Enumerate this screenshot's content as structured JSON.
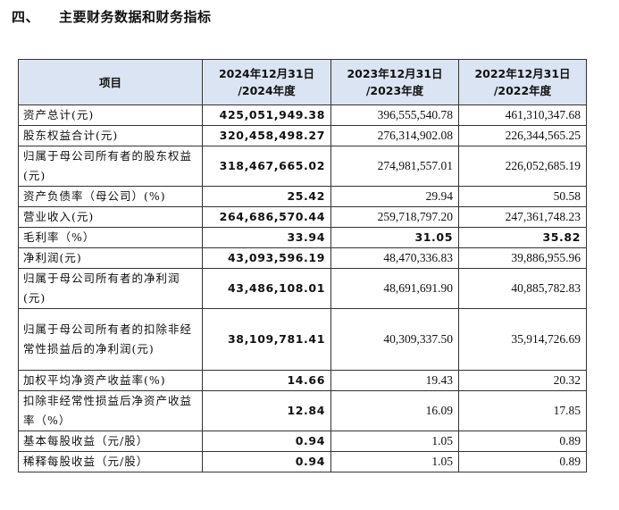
{
  "section": {
    "number": "四、",
    "title": "主要财务数据和财务指标"
  },
  "table": {
    "headers": [
      "项目",
      "2024年12月31日\n/2024年度",
      "2023年12月31日\n/2023年度",
      "2022年12月31日\n/2022年度"
    ],
    "rows": [
      {
        "label": "资产总计(元)",
        "v2024": "425,051,949.38",
        "v2023": "396,555,540.78",
        "v2022": "461,310,347.68",
        "bold2023": false,
        "bold2022": false
      },
      {
        "label": "股东权益合计(元)",
        "v2024": "320,458,498.27",
        "v2023": "276,314,902.08",
        "v2022": "226,344,565.25",
        "bold2023": false,
        "bold2022": false
      },
      {
        "label": "归属于母公司所有者的股东权益(元)",
        "v2024": "318,467,665.02",
        "v2023": "274,981,557.01",
        "v2022": "226,052,685.19",
        "bold2023": false,
        "bold2022": false
      },
      {
        "label": "资产负债率（母公司）(%)",
        "v2024": "25.42",
        "v2023": "29.94",
        "v2022": "50.58",
        "bold2023": false,
        "bold2022": false
      },
      {
        "label": "营业收入(元)",
        "v2024": "264,686,570.44",
        "v2023": "259,718,797.20",
        "v2022": "247,361,748.23",
        "bold2023": false,
        "bold2022": false
      },
      {
        "label": "毛利率（%）",
        "v2024": "33.94",
        "v2023": "31.05",
        "v2022": "35.82",
        "bold2023": true,
        "bold2022": true
      },
      {
        "label": "净利润(元)",
        "v2024": "43,093,596.19",
        "v2023": "48,470,336.83",
        "v2022": "39,886,955.96",
        "bold2023": false,
        "bold2022": false
      },
      {
        "label": "归属于母公司所有者的净利润(元)",
        "v2024": "43,486,108.01",
        "v2023": "48,691,691.90",
        "v2022": "40,885,782.83",
        "bold2023": false,
        "bold2022": false
      },
      {
        "label": "归属于母公司所有者的扣除非经常性损益后的净利润(元)",
        "v2024": "38,109,781.41",
        "v2023": "40,309,337.50",
        "v2022": "35,914,726.69",
        "bold2023": false,
        "bold2022": false
      },
      {
        "label": "加权平均净资产收益率(%)",
        "v2024": "14.66",
        "v2023": "19.43",
        "v2022": "20.32",
        "bold2023": false,
        "bold2022": false
      },
      {
        "label": "扣除非经常性损益后净资产收益率（%）",
        "v2024": "12.84",
        "v2023": "16.09",
        "v2022": "17.85",
        "bold2023": false,
        "bold2022": false
      },
      {
        "label": "基本每股收益（元/股）",
        "v2024": "0.94",
        "v2023": "1.05",
        "v2022": "0.89",
        "bold2023": false,
        "bold2022": false
      },
      {
        "label": "稀释每股收益（元/股）",
        "v2024": "0.94",
        "v2023": "1.05",
        "v2022": "0.89",
        "bold2023": false,
        "bold2022": false
      }
    ]
  },
  "colors": {
    "header_background": "#dbe4f2",
    "border": "#333333",
    "text": "#111111"
  }
}
